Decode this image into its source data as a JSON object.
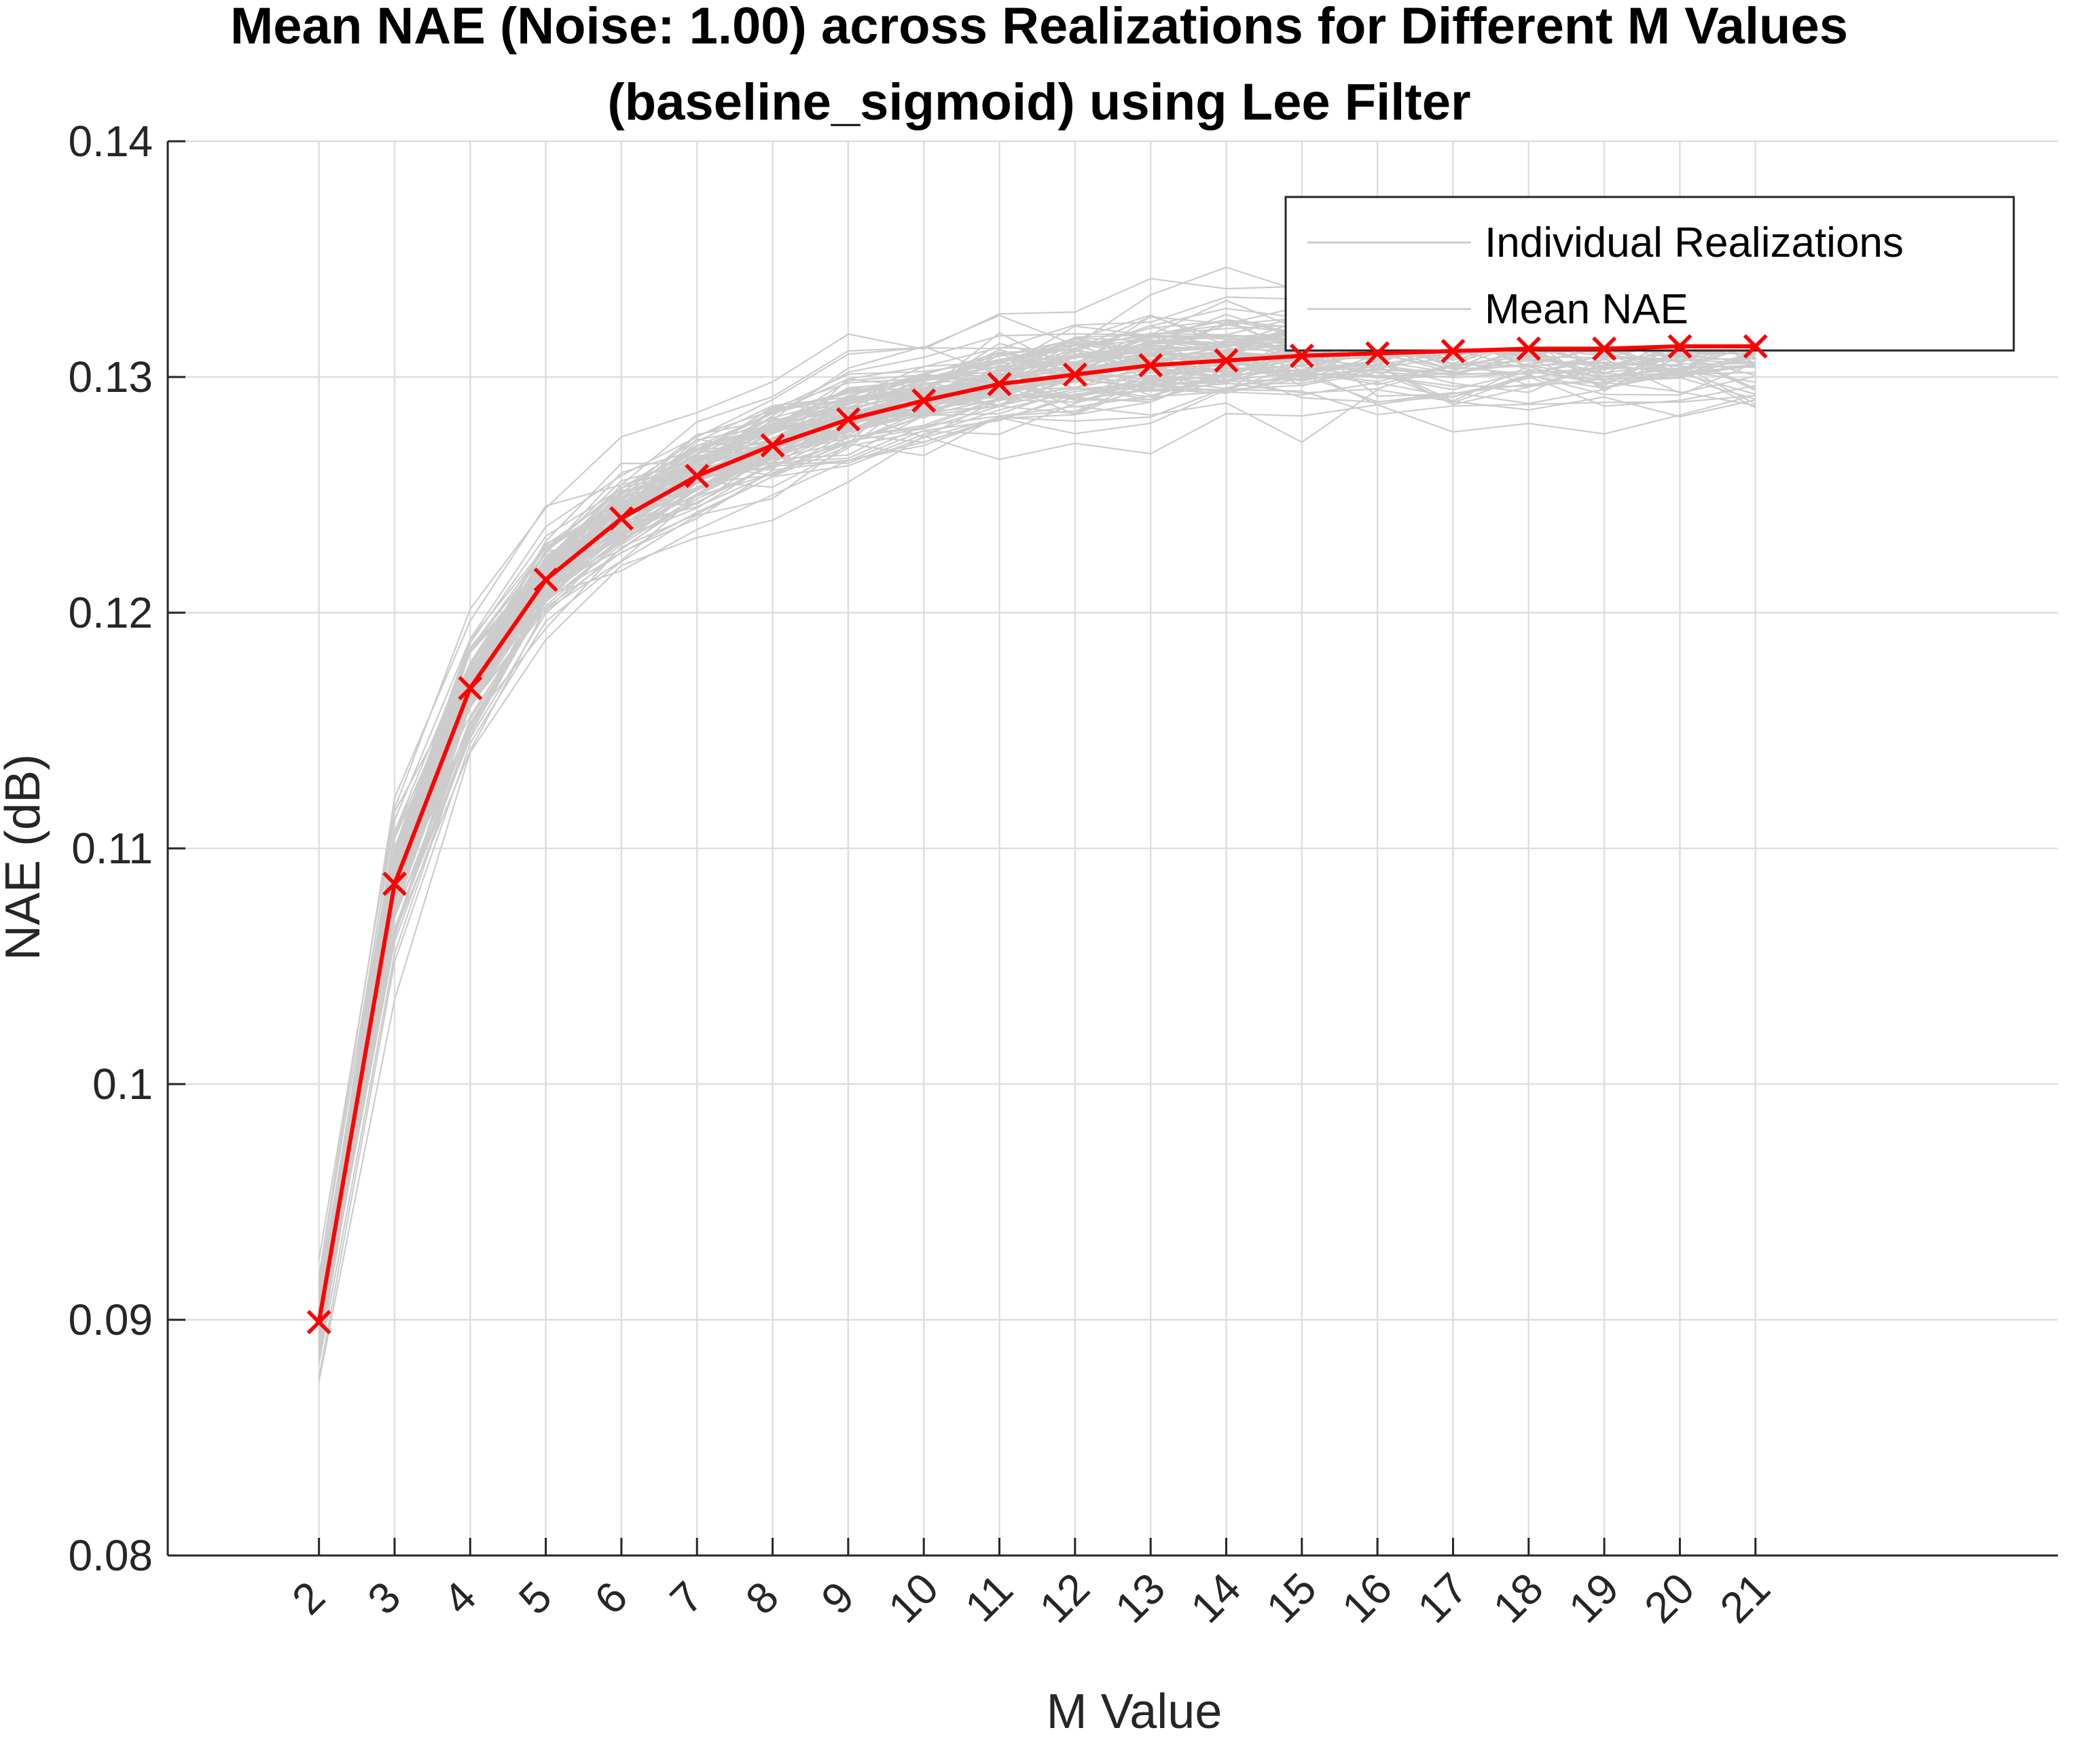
{
  "chart_data": {
    "type": "line",
    "title": "Mean NAE (Noise: 1.00) across Realizations for Different M Values",
    "subtitle": "(baseline_sigmoid) using Lee Filter",
    "xlabel": "M Value",
    "ylabel": "NAE (dB)",
    "x": [
      2,
      3,
      4,
      5,
      6,
      7,
      8,
      9,
      10,
      11,
      12,
      13,
      14,
      15,
      16,
      17,
      18,
      19,
      20,
      21
    ],
    "x_tick_labels": [
      "2",
      "3",
      "4",
      "5",
      "6",
      "7",
      "8",
      "9",
      "10",
      "11",
      "12",
      "13",
      "14",
      "15",
      "16",
      "17",
      "18",
      "19",
      "20",
      "21"
    ],
    "xlim": [
      0,
      25
    ],
    "ylim": [
      0.08,
      0.14
    ],
    "y_ticks": [
      0.08,
      0.09,
      0.1,
      0.11,
      0.12,
      0.13,
      0.14
    ],
    "y_tick_labels": [
      "0.08",
      "0.09",
      "0.1",
      "0.11",
      "0.12",
      "0.13",
      "0.14"
    ],
    "grid": true,
    "legend": {
      "location": "top-right",
      "entries": [
        "Individual Realizations",
        "Mean NAE"
      ]
    },
    "series": [
      {
        "name": "Mean NAE",
        "color": "#ff0000",
        "marker": "x",
        "values": [
          0.0899,
          0.1085,
          0.1168,
          0.1214,
          0.124,
          0.1258,
          0.1271,
          0.1282,
          0.129,
          0.1297,
          0.1301,
          0.1305,
          0.1307,
          0.1309,
          0.131,
          0.1311,
          0.1312,
          0.1312,
          0.1313,
          0.1313
        ]
      }
    ],
    "realizations": {
      "name": "Individual Realizations",
      "color": "#cccccc",
      "count": 100,
      "approx_range_at_M": {
        "2": [
          0.0855,
          0.0955
        ],
        "3": [
          0.1005,
          0.1195
        ],
        "4": [
          0.1095,
          0.1235
        ],
        "7": [
          0.1185,
          0.1315
        ],
        "12": [
          0.1245,
          0.1375
        ],
        "21": [
          0.1255,
          0.138
        ]
      }
    }
  }
}
